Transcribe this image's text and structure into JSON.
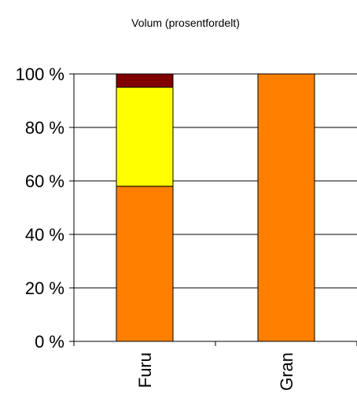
{
  "chart_data": {
    "type": "bar",
    "stacked": true,
    "title": "Volum (prosentfordelt)",
    "categories": [
      "Furu",
      "Gran"
    ],
    "series": [
      {
        "color": "#FF8000",
        "values": [
          58,
          100
        ]
      },
      {
        "color": "#FFFF00",
        "values": [
          37,
          0
        ]
      },
      {
        "color": "#800000",
        "values": [
          5,
          0
        ]
      }
    ],
    "ylim": [
      0,
      100
    ],
    "yticks": [
      "0 %",
      "20 %",
      "40 %",
      "60 %",
      "80 %",
      "100 %"
    ],
    "grid": true,
    "legend": "none"
  }
}
